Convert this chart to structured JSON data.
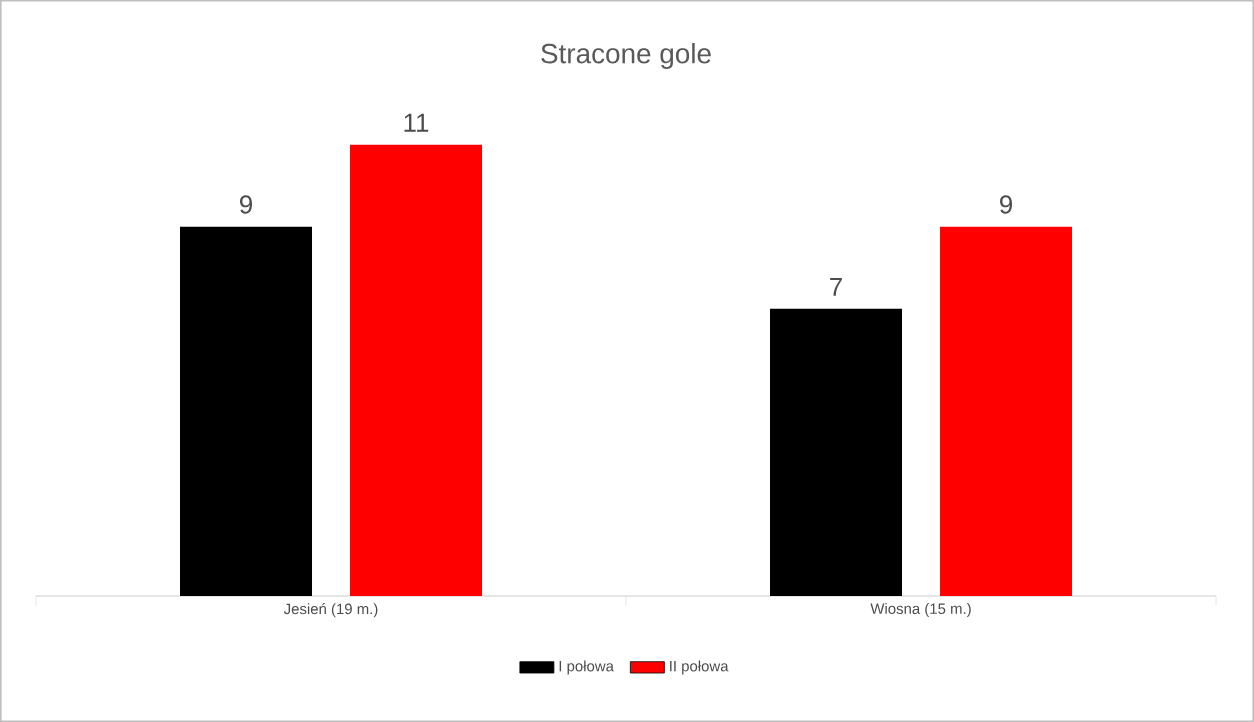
{
  "chart_data": {
    "type": "bar",
    "title": "Stracone gole",
    "categories": [
      "Jesień (19 m.)",
      "Wiosna (15 m.)"
    ],
    "series": [
      {
        "name": "I połowa",
        "color": "#000000",
        "values": [
          9,
          7
        ]
      },
      {
        "name": "II połowa",
        "color": "#ff0000",
        "values": [
          11,
          9
        ]
      }
    ],
    "data_labels": true,
    "legend": "bottom"
  }
}
